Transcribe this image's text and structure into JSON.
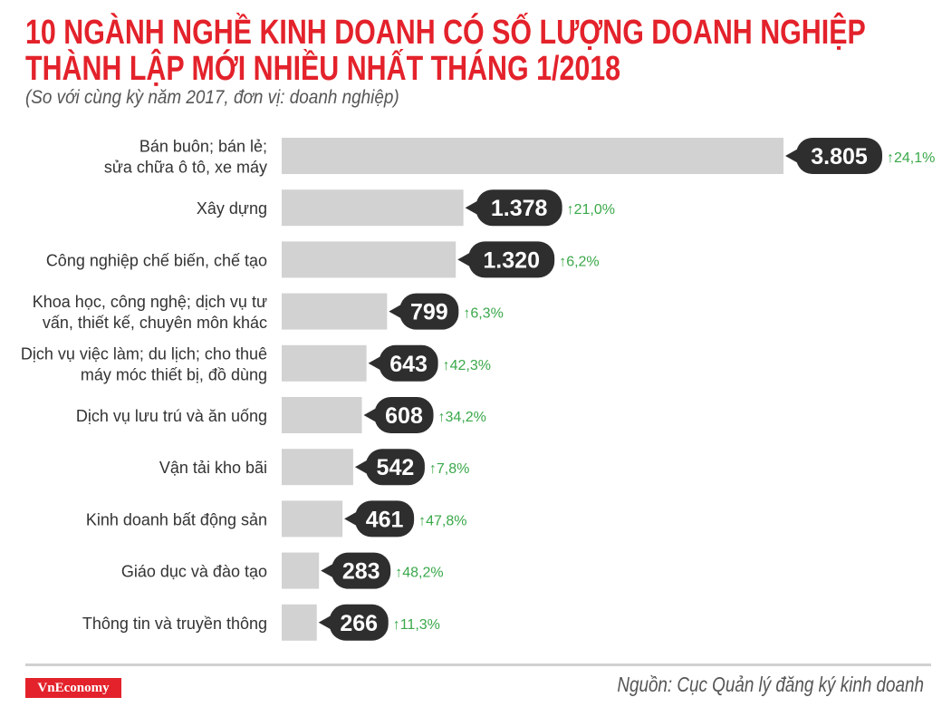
{
  "header": {
    "title_line1": "10 NGÀNH NGHỀ KINH DOANH CÓ SỐ LƯỢNG DOANH NGHIỆP",
    "title_line2": "THÀNH LẬP MỚI NHIỀU NHẤT THÁNG 1/2018",
    "subtitle": "(So với cùng kỳ năm 2017, đơn vị: doanh nghiệp)"
  },
  "footer": {
    "logo": "VnEconomy",
    "source": "Nguồn: Cục Quản lý đăng ký kinh doanh"
  },
  "colors": {
    "title": "#e3222b",
    "bar": "#d2d2d2",
    "bubble": "#2e2e2e",
    "change": "#3aa84a"
  },
  "chart_data": {
    "type": "bar",
    "orientation": "horizontal",
    "title": "10 NGÀNH NGHỀ KINH DOANH CÓ SỐ LƯỢNG DOANH NGHIỆP THÀNH LẬP MỚI NHIỀU NHẤT THÁNG 1/2018",
    "categories": [
      [
        "Bán buôn; bán lẻ;",
        "sửa chữa ô tô, xe máy"
      ],
      [
        "Xây dựng"
      ],
      [
        "Công nghiệp chế biến, chế tạo"
      ],
      [
        "Khoa học, công nghệ; dịch vụ tư",
        "vấn, thiết kế, chuyên môn khác"
      ],
      [
        "Dịch vụ việc làm; du lịch; cho thuê",
        "máy móc thiết bị, đồ dùng"
      ],
      [
        "Dịch vụ lưu trú và ăn uống"
      ],
      [
        "Vận tải kho bãi"
      ],
      [
        "Kinh doanh bất động sản"
      ],
      [
        "Giáo dục và đào tạo"
      ],
      [
        "Thông tin và truyền thông"
      ]
    ],
    "values": [
      3805,
      1378,
      1320,
      799,
      643,
      608,
      542,
      461,
      283,
      266
    ],
    "value_labels": [
      "3.805",
      "1.378",
      "1.320",
      "799",
      "643",
      "608",
      "542",
      "461",
      "283",
      "266"
    ],
    "changes": [
      "24,1%",
      "21,0%",
      "6,2%",
      "6,3%",
      "42,3%",
      "34,2%",
      "7,8%",
      "47,8%",
      "48,2%",
      "11,3%"
    ],
    "change_direction": "up",
    "xlabel": "",
    "ylabel": "",
    "xlim": [
      0,
      3805
    ]
  }
}
